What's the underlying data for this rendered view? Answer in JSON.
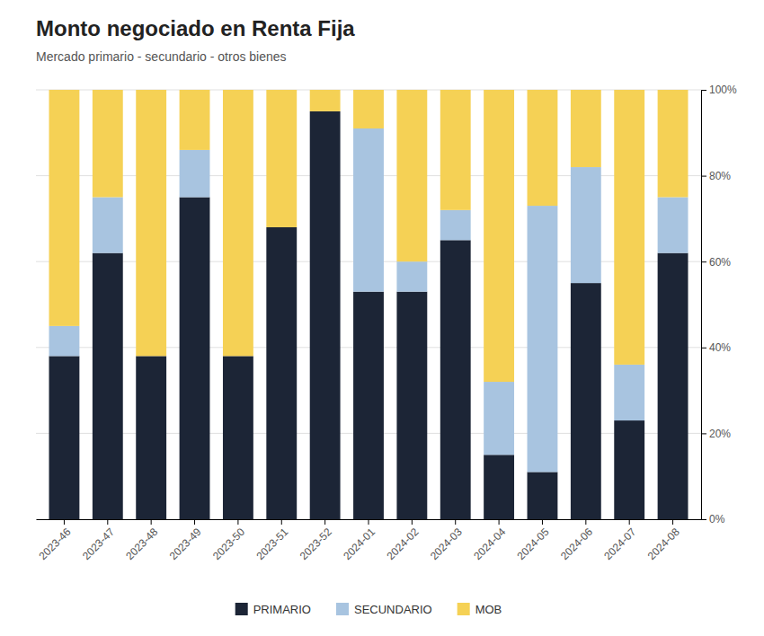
{
  "chart_data": {
    "type": "bar",
    "title": "Monto negociado en Renta Fija",
    "subtitle": "Mercado primario - secundario - otros bienes",
    "categories": [
      "2023-46",
      "2023-47",
      "2023-48",
      "2023-49",
      "2023-50",
      "2023-51",
      "2023-52",
      "2024-01",
      "2024-02",
      "2024-03",
      "2024-04",
      "2024-05",
      "2024-06",
      "2024-07",
      "2024-08"
    ],
    "series": [
      {
        "name": "PRIMARIO",
        "color": "#1c2536",
        "values": [
          38,
          62,
          38,
          75,
          38,
          68,
          95,
          53,
          53,
          65,
          15,
          11,
          55,
          23,
          62
        ]
      },
      {
        "name": "SECUNDARIO",
        "color": "#a8c4e0",
        "values": [
          7,
          13,
          0,
          11,
          0,
          0,
          0,
          38,
          7,
          7,
          17,
          62,
          27,
          13,
          13
        ]
      },
      {
        "name": "MOB",
        "color": "#f5d155",
        "values": [
          55,
          25,
          62,
          14,
          62,
          32,
          5,
          9,
          40,
          28,
          68,
          27,
          18,
          64,
          25
        ]
      }
    ],
    "stacked": true,
    "ylim": [
      0,
      100
    ],
    "yticks": [
      {
        "value": 0,
        "label": "0%"
      },
      {
        "value": 20,
        "label": "20%"
      },
      {
        "value": 40,
        "label": "40%"
      },
      {
        "value": 60,
        "label": "60%"
      },
      {
        "value": 80,
        "label": "80%"
      },
      {
        "value": 100,
        "label": "100%"
      }
    ],
    "grid": true,
    "legend": "bottom"
  }
}
